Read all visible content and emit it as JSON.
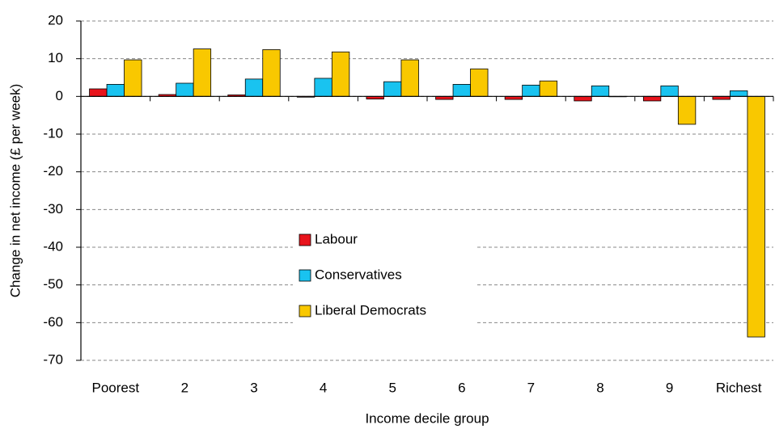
{
  "chart_data": {
    "type": "bar",
    "x_label": "Income decile group",
    "y_label": "Change in net income (£ per week)",
    "categories": [
      "Poorest",
      "2",
      "3",
      "4",
      "5",
      "6",
      "7",
      "8",
      "9",
      "Richest"
    ],
    "series": [
      {
        "name": "Labour",
        "color": "#e8141c",
        "values": [
          2.0,
          0.5,
          0.4,
          -0.2,
          -0.7,
          -0.8,
          -0.8,
          -1.2,
          -1.2,
          -0.8
        ]
      },
      {
        "name": "Conservatives",
        "color": "#19c3f0",
        "values": [
          3.2,
          3.5,
          4.6,
          4.8,
          3.9,
          3.2,
          3.0,
          2.8,
          2.8,
          1.5
        ]
      },
      {
        "name": "Liberal Democrats",
        "color": "#f9c800",
        "values": [
          9.7,
          12.6,
          12.4,
          11.8,
          9.7,
          7.3,
          4.1,
          -0.1,
          -7.4,
          -63.8
        ]
      }
    ],
    "ylim": [
      -70,
      20
    ],
    "yticks": [
      -70,
      -60,
      -50,
      -40,
      -30,
      -20,
      -10,
      0,
      10,
      20
    ],
    "grid": true
  }
}
